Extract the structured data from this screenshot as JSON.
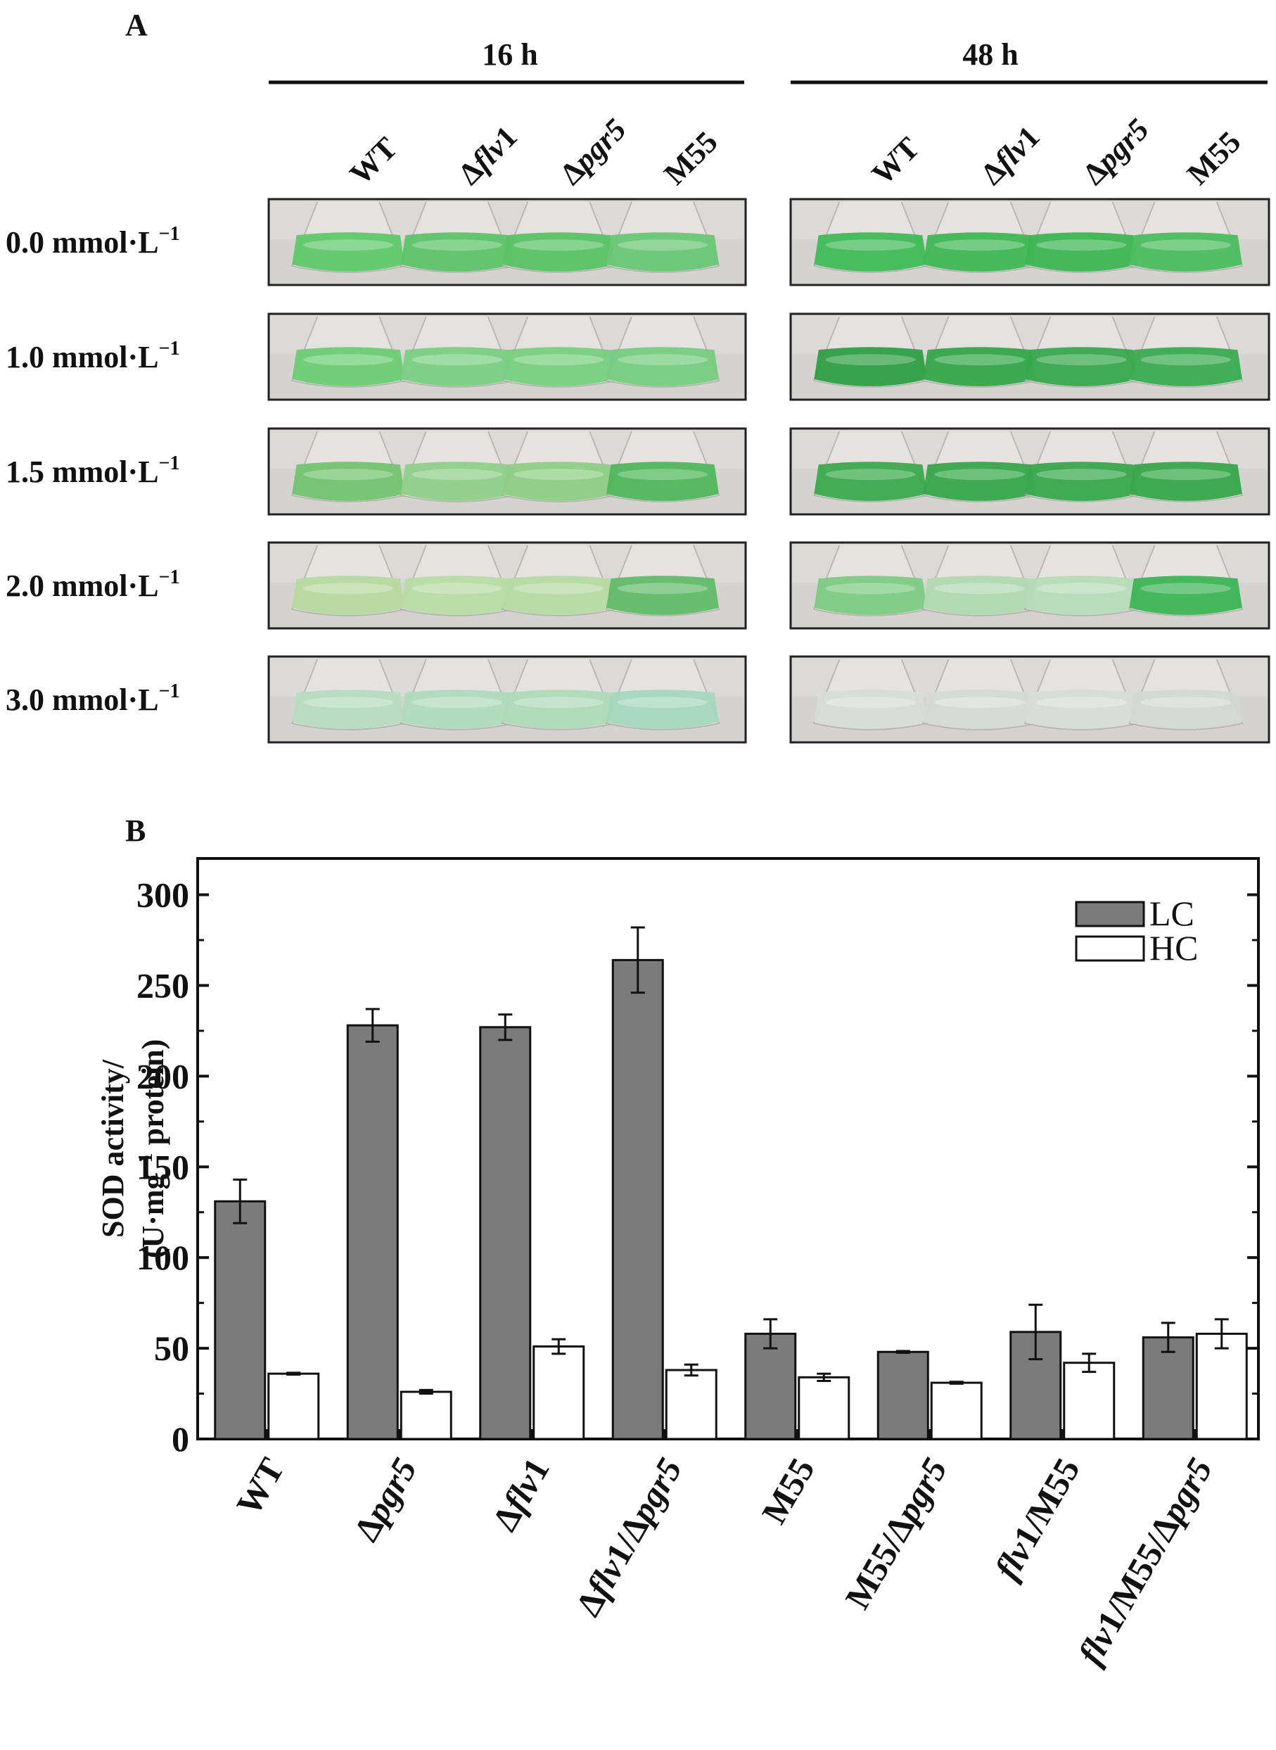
{
  "panel_a": {
    "label": "A",
    "groups": [
      {
        "time": "16 h",
        "strains": [
          {
            "parts": [
              {
                "t": "WT",
                "i": false
              }
            ]
          },
          {
            "parts": [
              {
                "t": "Δ",
                "i": false
              },
              {
                "t": "flv",
                "i": true
              },
              {
                "t": "1",
                "i": false
              }
            ]
          },
          {
            "parts": [
              {
                "t": "Δ",
                "i": false
              },
              {
                "t": "pgr5",
                "i": true
              }
            ]
          },
          {
            "parts": [
              {
                "t": "M55",
                "i": false
              }
            ]
          }
        ]
      },
      {
        "time": "48 h",
        "strains": [
          {
            "parts": [
              {
                "t": "WT",
                "i": false
              }
            ]
          },
          {
            "parts": [
              {
                "t": "Δ",
                "i": false
              },
              {
                "t": "flv",
                "i": true
              },
              {
                "t": "1",
                "i": false
              }
            ]
          },
          {
            "parts": [
              {
                "t": "Δ",
                "i": false
              },
              {
                "t": "pgr5",
                "i": true
              }
            ]
          },
          {
            "parts": [
              {
                "t": "M55",
                "i": false
              }
            ]
          }
        ]
      }
    ],
    "concentrations": [
      "0.0",
      "1.0",
      "1.5",
      "2.0",
      "3.0"
    ],
    "conc_unit": "mmol·L",
    "conc_exp": "−1",
    "flask_colors": {
      "16 h": [
        [
          "#5fc86a",
          "#5cc467",
          "#58c264",
          "#68c774"
        ],
        [
          "#6ccd73",
          "#7bcf83",
          "#78cf80",
          "#76cc7e"
        ],
        [
          "#72c46f",
          "#8fcf89",
          "#8ecd86",
          "#4fb65a"
        ],
        [
          "#b7d9a0",
          "#b8dca5",
          "#b5daa3",
          "#62bb68"
        ],
        [
          "#b7dcc0",
          "#b0dbbc",
          "#afdab9",
          "#a4d8bd"
        ]
      ],
      "48 h": [
        [
          "#3fbb55",
          "#3eb853",
          "#3cb651",
          "#4abd5e"
        ],
        [
          "#2e9e45",
          "#34a64a",
          "#36a84c",
          "#3aab50"
        ],
        [
          "#3aa94d",
          "#36a74a",
          "#38a84c",
          "#36a64a"
        ],
        [
          "#7ccc84",
          "#b0d9b0",
          "#b6dbb6",
          "#3cb455"
        ],
        [
          "#d8dcd8",
          "#d6dad6",
          "#d8dcd8",
          "#d4d8d4"
        ]
      ]
    }
  },
  "chart_data": {
    "panel_label": "B",
    "type": "bar",
    "ylabel_line1": "SOD activity/",
    "ylabel_line2_pre": "(U·mg",
    "ylabel_line2_exp": "−1",
    "ylabel_line2_post": " protein)",
    "ylim": [
      0,
      320
    ],
    "yticks": [
      0,
      50,
      100,
      150,
      200,
      250,
      300
    ],
    "categories": [
      {
        "parts": [
          {
            "t": "WT",
            "i": false
          }
        ]
      },
      {
        "parts": [
          {
            "t": "Δ",
            "i": false
          },
          {
            "t": "pgr5",
            "i": true
          }
        ]
      },
      {
        "parts": [
          {
            "t": "Δ",
            "i": false
          },
          {
            "t": "flv",
            "i": true
          },
          {
            "t": "1",
            "i": false
          }
        ]
      },
      {
        "parts": [
          {
            "t": "Δ",
            "i": false
          },
          {
            "t": "flv",
            "i": true
          },
          {
            "t": "1/Δ",
            "i": false
          },
          {
            "t": "pgr5",
            "i": true
          }
        ]
      },
      {
        "parts": [
          {
            "t": "M55",
            "i": false
          }
        ]
      },
      {
        "parts": [
          {
            "t": "M55/Δ",
            "i": false
          },
          {
            "t": "pgr5",
            "i": true
          }
        ]
      },
      {
        "parts": [
          {
            "t": "flv",
            "i": true
          },
          {
            "t": "1/M55",
            "i": false
          }
        ]
      },
      {
        "parts": [
          {
            "t": "flv",
            "i": true
          },
          {
            "t": "1/M55/Δ",
            "i": false
          },
          {
            "t": "pgr5",
            "i": true
          }
        ]
      }
    ],
    "series": [
      {
        "name": "LC",
        "color": "#7b7b7b",
        "values": [
          131,
          228,
          227,
          264,
          58,
          48,
          59,
          56
        ],
        "errors": [
          12,
          9,
          7,
          18,
          8,
          0.5,
          15,
          8
        ]
      },
      {
        "name": "HC",
        "color": "#ffffff",
        "values": [
          36,
          26,
          51,
          38,
          34,
          31,
          42,
          58
        ],
        "errors": [
          0.5,
          1,
          4,
          3,
          2,
          0.5,
          5,
          8
        ]
      }
    ],
    "legend_position": "top-right",
    "grid": false
  }
}
